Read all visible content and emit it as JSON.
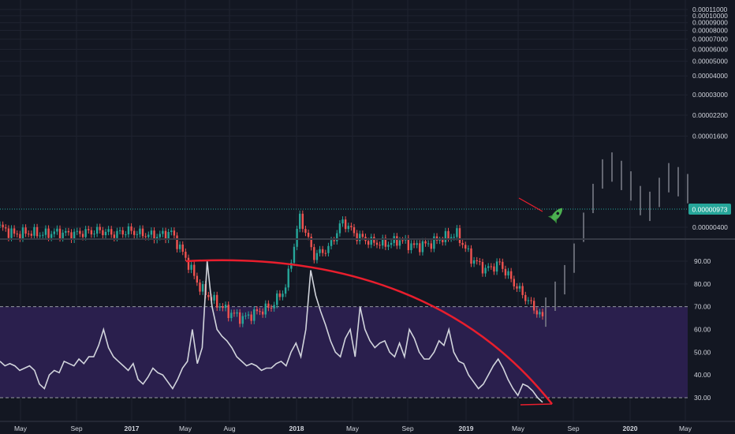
{
  "chart_data": {
    "type": "candlestick",
    "price_pane": {
      "y_scale": "log",
      "y_ticks": [
        "0.00011000",
        "0.00010000",
        "0.00009000",
        "0.00008000",
        "0.00007000",
        "0.00006000",
        "0.00005000",
        "0.00004000",
        "0.00003000",
        "0.00002200",
        "0.00001600",
        "0.00000400"
      ],
      "current_price_label": "0.00000973",
      "current_price": 9.73e-06,
      "dates": [
        "2016-04",
        "2016-05",
        "2016-06",
        "2016-07",
        "2016-08",
        "2016-09",
        "2016-10",
        "2016-11",
        "2016-12",
        "2017-01",
        "2017-02",
        "2017-03",
        "2017-04",
        "2017-05",
        "2017-06",
        "2017-07",
        "2017-08",
        "2017-09",
        "2017-10",
        "2017-11",
        "2017-12",
        "2018-01",
        "2018-02",
        "2018-03",
        "2018-04",
        "2018-05",
        "2018-06",
        "2018-07",
        "2018-08",
        "2018-09",
        "2018-10",
        "2018-11",
        "2018-12",
        "2019-01",
        "2019-02",
        "2019-03",
        "2019-04",
        "2019-05",
        "2019-06"
      ],
      "closes": [
        4e-06,
        3.6e-06,
        3.7e-06,
        3.6e-06,
        3.7e-06,
        3.6e-06,
        3.7e-06,
        3.8e-06,
        3.6e-06,
        3.8e-06,
        3.6e-06,
        3.5e-06,
        3.7e-06,
        2.5e-06,
        1.6e-06,
        1.3e-06,
        1.1e-06,
        1e-06,
        1.1e-06,
        1.2e-06,
        1.6e-06,
        4.7e-06,
        2.6e-06,
        2.9e-06,
        4.4e-06,
        3.5e-06,
        3.2e-06,
        3.1e-06,
        3.3e-06,
        3e-06,
        3.1e-06,
        3.4e-06,
        3.6e-06,
        2.5e-06,
        2.1e-06,
        2.3e-06,
        1.7e-06,
        1.3e-06,
        1e-06
      ],
      "projection_closes": [
        1.1e-06,
        1.4e-06,
        1.8e-06,
        2.5e-06,
        4e-06,
        6.2e-06,
        9e-06,
        1e-05,
        8.8e-06,
        7.5e-06,
        6e-06,
        5.5e-06,
        6.8e-06,
        8.5e-06,
        8e-06,
        7.2e-06
      ]
    },
    "oscillator_pane": {
      "y_ticks": [
        "90.00",
        "80.00",
        "70.00",
        "60.00",
        "50.00",
        "40.00",
        "30.00"
      ],
      "overbought": 70,
      "oversold": 30,
      "values": [
        46,
        44,
        45,
        44,
        42,
        43,
        44,
        42,
        36,
        34,
        40,
        42,
        41,
        46,
        45,
        44,
        47,
        45,
        48,
        48,
        53,
        60,
        52,
        48,
        46,
        44,
        42,
        45,
        38,
        36,
        39,
        43,
        41,
        40,
        37,
        34,
        38,
        43,
        46,
        60,
        45,
        52,
        90,
        70,
        60,
        57,
        55,
        52,
        48,
        46,
        44,
        45,
        44,
        42,
        43,
        43,
        45,
        46,
        44,
        50,
        54,
        48,
        60,
        86,
        75,
        68,
        62,
        55,
        50,
        48,
        56,
        60,
        48,
        70,
        60,
        55,
        52,
        54,
        55,
        50,
        48,
        54,
        48,
        60,
        56,
        50,
        47,
        47,
        50,
        55,
        53,
        60,
        50,
        46,
        45,
        40,
        37,
        34,
        36,
        40,
        44,
        47,
        43,
        38,
        34,
        31,
        36,
        35,
        33,
        30,
        28
      ]
    },
    "x_ticks": [
      "May",
      "Sep",
      "2017",
      "May",
      "Aug",
      "2018",
      "May",
      "Sep",
      "2019",
      "May",
      "Sep",
      "2020",
      "May"
    ],
    "annotations": [
      "rocket-icon"
    ],
    "colors": {
      "background": "#131722",
      "up_candle": "#26a69a",
      "down_candle": "#ef5350",
      "projection": "#787b86",
      "oscillator_line": "#d1d4dc",
      "oscillator_band": "#2a1f4d",
      "trendline": "#e91e2d",
      "price_line": "#26a69a",
      "rocket": "#4caf50"
    }
  }
}
